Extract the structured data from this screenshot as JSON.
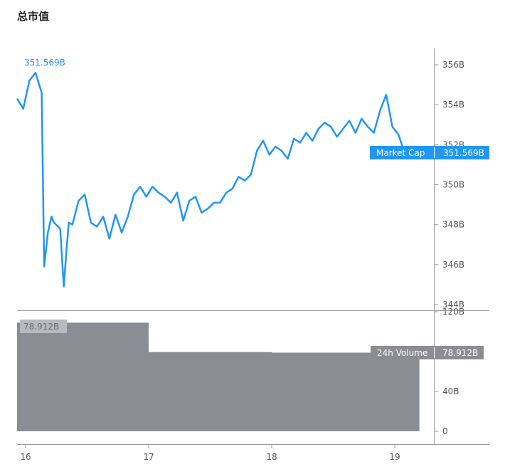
{
  "page": {
    "title": "总市值"
  },
  "chart_data": [
    {
      "type": "line",
      "name": "price-panel",
      "x_ticks": [
        "16",
        "17",
        "18",
        "19"
      ],
      "y_ticks": [
        "356B",
        "354B",
        "352B",
        "350B",
        "348B",
        "346B",
        "344B"
      ],
      "ylim": [
        344,
        356.7
      ],
      "series": [
        {
          "name": "Market Cap",
          "color": "#2196f3",
          "last_value_label": "351.569B",
          "start_value_label": "351.569B",
          "x": [
            16.0,
            16.05,
            16.1,
            16.15,
            16.2,
            16.22,
            16.25,
            16.28,
            16.3,
            16.35,
            16.38,
            16.4,
            16.42,
            16.45,
            16.5,
            16.55,
            16.6,
            16.65,
            16.7,
            16.75,
            16.8,
            16.85,
            16.9,
            16.95,
            17.0,
            17.05,
            17.1,
            17.15,
            17.2,
            17.25,
            17.3,
            17.35,
            17.4,
            17.45,
            17.5,
            17.55,
            17.6,
            17.65,
            17.7,
            17.75,
            17.8,
            17.85,
            17.9,
            17.95,
            18.0,
            18.05,
            18.1,
            18.15,
            18.2,
            18.25,
            18.3,
            18.35,
            18.4,
            18.45,
            18.5,
            18.55,
            18.6,
            18.65,
            18.7,
            18.75,
            18.8,
            18.85,
            18.9,
            18.95,
            19.0,
            19.05,
            19.1,
            19.15
          ],
          "y": [
            354.3,
            353.8,
            355.2,
            355.6,
            354.6,
            345.9,
            347.6,
            348.4,
            348.1,
            347.8,
            344.9,
            346.6,
            348.1,
            348.0,
            349.2,
            349.5,
            348.1,
            347.9,
            348.4,
            347.3,
            348.5,
            347.6,
            348.4,
            349.5,
            349.9,
            349.4,
            349.9,
            349.6,
            349.4,
            349.1,
            349.6,
            348.2,
            349.2,
            349.4,
            348.6,
            348.8,
            349.1,
            349.1,
            349.6,
            349.8,
            350.4,
            350.2,
            350.5,
            351.7,
            352.2,
            351.5,
            351.9,
            351.7,
            351.3,
            352.3,
            352.1,
            352.6,
            352.2,
            352.8,
            353.1,
            352.9,
            352.4,
            352.8,
            353.2,
            352.6,
            353.3,
            352.9,
            352.6,
            353.7,
            354.5,
            352.9,
            352.5,
            351.6
          ]
        }
      ]
    },
    {
      "type": "bar",
      "name": "volume-panel",
      "y_ticks": [
        "120B",
        "40B",
        "0"
      ],
      "ylim": [
        0,
        120
      ],
      "series": [
        {
          "name": "24h Volume",
          "color": "#8a8d94",
          "last_value_label": "78.912B",
          "start_value_label": "78.912B",
          "bars": [
            {
              "x_start": 16.0,
              "x_end": 17.0,
              "value": 109
            },
            {
              "x_start": 17.0,
              "x_end": 18.0,
              "value": 79.5
            },
            {
              "x_start": 18.0,
              "x_end": 19.2,
              "value": 78.912
            }
          ]
        }
      ]
    }
  ]
}
